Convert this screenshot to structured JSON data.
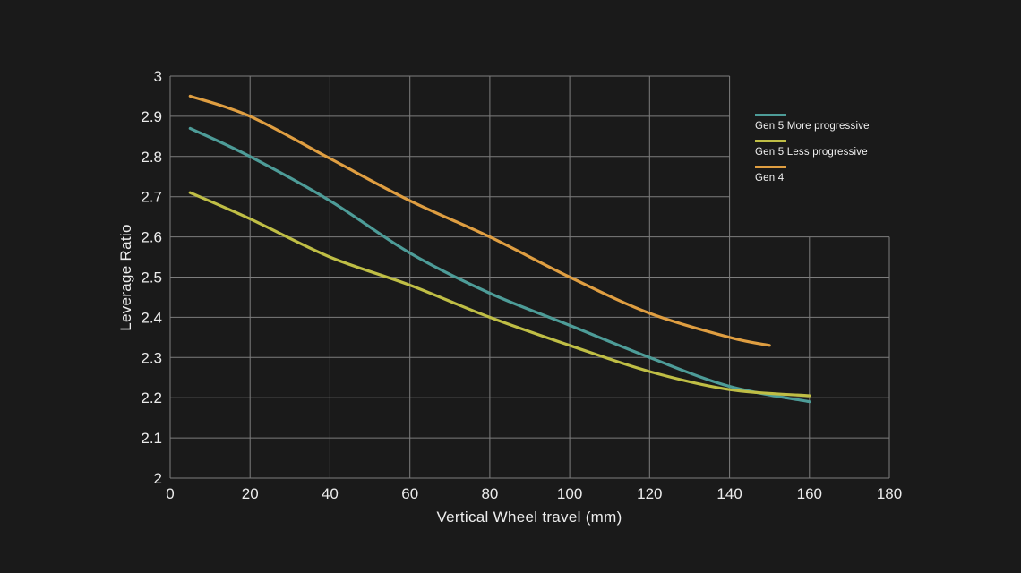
{
  "page": {
    "background": "#1a1a1a",
    "text_color": "#ececec"
  },
  "chart_data": {
    "type": "line",
    "title": "",
    "xlabel": "Vertical Wheel travel (mm)",
    "ylabel": "Leverage Ratio",
    "xlim": [
      0,
      180
    ],
    "ylim": [
      2,
      3
    ],
    "x_ticks": [
      0,
      20,
      40,
      60,
      80,
      100,
      120,
      140,
      160,
      180
    ],
    "y_ticks": [
      3,
      2.9,
      2.8,
      2.7,
      2.6,
      2.5,
      2.4,
      2.3,
      2.2,
      2.1,
      2
    ],
    "grid": true,
    "grid_color": "#7d7d7d",
    "grid_break": {
      "x": 140,
      "y": 2.6,
      "note": "plot grid is step-shaped: above y=2.6 the grid extends only to x=140; below 2.6 it extends to x=180"
    },
    "legend_position": "inside-right",
    "series": [
      {
        "name": "Gen 5 More progressive",
        "color": "#4d9c98",
        "x": [
          5,
          20,
          40,
          60,
          80,
          100,
          120,
          140,
          160
        ],
        "y": [
          2.87,
          2.8,
          2.69,
          2.56,
          2.46,
          2.38,
          2.3,
          2.228,
          2.19
        ]
      },
      {
        "name": "Gen 5 Less progressive",
        "color": "#bfbe45",
        "x": [
          5,
          20,
          40,
          60,
          80,
          100,
          120,
          140,
          160
        ],
        "y": [
          2.71,
          2.645,
          2.55,
          2.48,
          2.4,
          2.33,
          2.265,
          2.22,
          2.205
        ]
      },
      {
        "name": "Gen 4",
        "color": "#df9e41",
        "x": [
          5,
          20,
          40,
          60,
          80,
          100,
          120,
          140,
          150
        ],
        "y": [
          2.95,
          2.9,
          2.795,
          2.69,
          2.6,
          2.5,
          2.41,
          2.35,
          2.33
        ]
      }
    ]
  }
}
